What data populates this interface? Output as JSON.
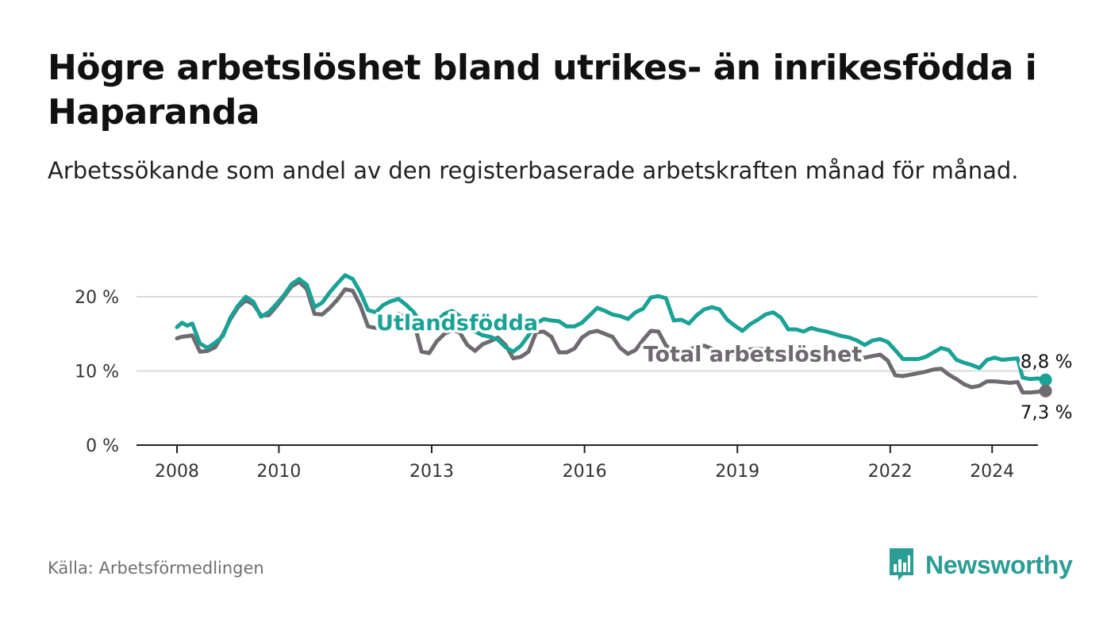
{
  "header": {
    "title": "Högre arbetslöshet bland utrikes- än inrikesfödda i Haparanda",
    "subtitle": "Arbetssökande som andel av den registerbaserade arbetskraften månad för månad."
  },
  "footer": {
    "source": "Källa: Arbetsförmedlingen",
    "brand": "Newsworthy"
  },
  "colors": {
    "foreign_born": "#1aa296",
    "total": "#6e6a6f",
    "grid": "#d9d9d9",
    "axis": "#222222",
    "text": "#111111"
  },
  "chart_data": {
    "type": "line",
    "title": "Högre arbetslöshet bland utrikes- än inrikesfödda i Haparanda",
    "xlabel": "",
    "ylabel": "",
    "ylim": [
      0,
      25
    ],
    "xlim": [
      2007.5,
      2025.2
    ],
    "y_ticks": [
      0,
      10,
      20
    ],
    "y_tick_labels": [
      "0 %",
      "10 %",
      "20 %"
    ],
    "x_ticks": [
      2008,
      2010,
      2013,
      2016,
      2019,
      2022,
      2024
    ],
    "x_tick_labels": [
      "2008",
      "2010",
      "2013",
      "2016",
      "2019",
      "2022",
      "2024"
    ],
    "grid": true,
    "end_labels": {
      "foreign_born": "8,8 %",
      "total": "7,3 %"
    },
    "series": [
      {
        "key": "foreign_born",
        "name": "Utlandsfödda",
        "color": "#1aa296",
        "points": [
          [
            2008.0,
            15.9
          ],
          [
            2008.1,
            16.5
          ],
          [
            2008.2,
            16.1
          ],
          [
            2008.3,
            16.4
          ],
          [
            2008.45,
            13.7
          ],
          [
            2008.6,
            13.1
          ],
          [
            2008.75,
            13.8
          ],
          [
            2008.9,
            14.7
          ],
          [
            2009.05,
            17.2
          ],
          [
            2009.2,
            18.8
          ],
          [
            2009.35,
            20.0
          ],
          [
            2009.5,
            19.3
          ],
          [
            2009.65,
            17.3
          ],
          [
            2009.8,
            17.9
          ],
          [
            2009.95,
            19.0
          ],
          [
            2010.1,
            20.2
          ],
          [
            2010.25,
            21.7
          ],
          [
            2010.4,
            22.4
          ],
          [
            2010.55,
            21.6
          ],
          [
            2010.7,
            18.6
          ],
          [
            2010.85,
            19.2
          ],
          [
            2011.0,
            20.6
          ],
          [
            2011.15,
            21.8
          ],
          [
            2011.3,
            22.9
          ],
          [
            2011.45,
            22.4
          ],
          [
            2011.6,
            20.6
          ],
          [
            2011.75,
            18.2
          ],
          [
            2011.9,
            17.9
          ],
          [
            2012.05,
            18.9
          ],
          [
            2012.2,
            19.4
          ],
          [
            2012.35,
            19.7
          ],
          [
            2012.5,
            18.9
          ],
          [
            2012.65,
            17.9
          ],
          [
            2012.8,
            16.3
          ],
          [
            2012.95,
            15.8
          ],
          [
            2013.1,
            16.7
          ],
          [
            2013.25,
            17.7
          ],
          [
            2013.4,
            18.1
          ],
          [
            2013.55,
            17.4
          ],
          [
            2013.7,
            16.4
          ],
          [
            2013.85,
            15.3
          ],
          [
            2014.0,
            14.8
          ],
          [
            2014.15,
            14.6
          ],
          [
            2014.3,
            14.2
          ],
          [
            2014.45,
            13.2
          ],
          [
            2014.6,
            12.6
          ],
          [
            2014.75,
            13.4
          ],
          [
            2014.9,
            14.8
          ],
          [
            2015.05,
            16.4
          ],
          [
            2015.2,
            17.0
          ],
          [
            2015.35,
            16.8
          ],
          [
            2015.5,
            16.7
          ],
          [
            2015.65,
            16.0
          ],
          [
            2015.8,
            16.0
          ],
          [
            2015.95,
            16.5
          ],
          [
            2016.1,
            17.5
          ],
          [
            2016.25,
            18.5
          ],
          [
            2016.4,
            18.1
          ],
          [
            2016.55,
            17.6
          ],
          [
            2016.7,
            17.4
          ],
          [
            2016.85,
            17.0
          ],
          [
            2017.0,
            17.9
          ],
          [
            2017.15,
            18.4
          ],
          [
            2017.3,
            19.9
          ],
          [
            2017.45,
            20.1
          ],
          [
            2017.6,
            19.8
          ],
          [
            2017.75,
            16.8
          ],
          [
            2017.9,
            16.9
          ],
          [
            2018.05,
            16.4
          ],
          [
            2018.2,
            17.5
          ],
          [
            2018.35,
            18.3
          ],
          [
            2018.5,
            18.6
          ],
          [
            2018.65,
            18.3
          ],
          [
            2018.8,
            16.9
          ],
          [
            2018.95,
            16.1
          ],
          [
            2019.1,
            15.4
          ],
          [
            2019.25,
            16.3
          ],
          [
            2019.4,
            16.9
          ],
          [
            2019.55,
            17.6
          ],
          [
            2019.7,
            17.9
          ],
          [
            2019.85,
            17.2
          ],
          [
            2020.0,
            15.6
          ],
          [
            2020.15,
            15.6
          ],
          [
            2020.3,
            15.3
          ],
          [
            2020.45,
            15.8
          ],
          [
            2020.6,
            15.5
          ],
          [
            2020.75,
            15.3
          ],
          [
            2020.9,
            15.0
          ],
          [
            2021.05,
            14.7
          ],
          [
            2021.2,
            14.5
          ],
          [
            2021.35,
            14.1
          ],
          [
            2021.5,
            13.5
          ],
          [
            2021.65,
            14.1
          ],
          [
            2021.8,
            14.3
          ],
          [
            2021.95,
            13.9
          ],
          [
            2022.1,
            12.8
          ],
          [
            2022.25,
            11.6
          ],
          [
            2022.4,
            11.6
          ],
          [
            2022.55,
            11.6
          ],
          [
            2022.7,
            11.9
          ],
          [
            2022.85,
            12.5
          ],
          [
            2023.0,
            13.1
          ],
          [
            2023.15,
            12.8
          ],
          [
            2023.3,
            11.5
          ],
          [
            2023.45,
            11.1
          ],
          [
            2023.6,
            10.8
          ],
          [
            2023.75,
            10.4
          ],
          [
            2023.9,
            11.5
          ],
          [
            2024.05,
            11.8
          ],
          [
            2024.2,
            11.5
          ],
          [
            2024.35,
            11.6
          ],
          [
            2024.5,
            11.7
          ],
          [
            2024.6,
            9.1
          ],
          [
            2024.75,
            8.9
          ],
          [
            2024.9,
            9.0
          ],
          [
            2025.05,
            8.8
          ]
        ]
      },
      {
        "key": "total",
        "name": "Total arbetslöshet",
        "color": "#6e6a6f",
        "points": [
          [
            2008.0,
            14.4
          ],
          [
            2008.1,
            14.6
          ],
          [
            2008.2,
            14.7
          ],
          [
            2008.3,
            14.8
          ],
          [
            2008.45,
            12.6
          ],
          [
            2008.6,
            12.7
          ],
          [
            2008.75,
            13.2
          ],
          [
            2008.9,
            14.9
          ],
          [
            2009.05,
            17.0
          ],
          [
            2009.2,
            18.6
          ],
          [
            2009.35,
            19.5
          ],
          [
            2009.5,
            19.0
          ],
          [
            2009.65,
            17.5
          ],
          [
            2009.8,
            17.5
          ],
          [
            2009.95,
            18.7
          ],
          [
            2010.1,
            20.0
          ],
          [
            2010.25,
            21.4
          ],
          [
            2010.4,
            22.0
          ],
          [
            2010.55,
            21.0
          ],
          [
            2010.7,
            17.7
          ],
          [
            2010.85,
            17.6
          ],
          [
            2011.0,
            18.5
          ],
          [
            2011.15,
            19.6
          ],
          [
            2011.3,
            21.0
          ],
          [
            2011.45,
            20.8
          ],
          [
            2011.6,
            18.8
          ],
          [
            2011.75,
            16.0
          ],
          [
            2011.9,
            15.8
          ],
          [
            2012.05,
            16.2
          ],
          [
            2012.2,
            16.9
          ],
          [
            2012.35,
            17.7
          ],
          [
            2012.5,
            17.2
          ],
          [
            2012.65,
            16.6
          ],
          [
            2012.8,
            12.6
          ],
          [
            2012.95,
            12.4
          ],
          [
            2013.1,
            14.0
          ],
          [
            2013.25,
            15.0
          ],
          [
            2013.4,
            15.5
          ],
          [
            2013.55,
            15.2
          ],
          [
            2013.7,
            13.5
          ],
          [
            2013.85,
            12.7
          ],
          [
            2014.0,
            13.6
          ],
          [
            2014.15,
            14.0
          ],
          [
            2014.3,
            14.5
          ],
          [
            2014.45,
            13.5
          ],
          [
            2014.6,
            11.7
          ],
          [
            2014.75,
            11.9
          ],
          [
            2014.9,
            12.6
          ],
          [
            2015.05,
            15.2
          ],
          [
            2015.2,
            15.3
          ],
          [
            2015.35,
            14.6
          ],
          [
            2015.5,
            12.5
          ],
          [
            2015.65,
            12.5
          ],
          [
            2015.8,
            13.0
          ],
          [
            2015.95,
            14.5
          ],
          [
            2016.1,
            15.2
          ],
          [
            2016.25,
            15.4
          ],
          [
            2016.4,
            15.0
          ],
          [
            2016.55,
            14.6
          ],
          [
            2016.7,
            13.1
          ],
          [
            2016.85,
            12.3
          ],
          [
            2017.0,
            12.8
          ],
          [
            2017.15,
            14.2
          ],
          [
            2017.3,
            15.4
          ],
          [
            2017.45,
            15.3
          ],
          [
            2017.6,
            13.4
          ],
          [
            2017.75,
            12.7
          ],
          [
            2017.9,
            12.4
          ],
          [
            2018.05,
            12.8
          ],
          [
            2018.2,
            13.3
          ],
          [
            2018.35,
            13.4
          ],
          [
            2018.5,
            13.0
          ],
          [
            2018.65,
            12.4
          ],
          [
            2018.8,
            12.2
          ],
          [
            2018.95,
            12.3
          ],
          [
            2019.1,
            12.4
          ],
          [
            2019.25,
            12.9
          ],
          [
            2019.4,
            13.0
          ],
          [
            2019.55,
            12.9
          ],
          [
            2019.7,
            12.5
          ],
          [
            2019.85,
            11.7
          ],
          [
            2020.0,
            11.6
          ],
          [
            2020.15,
            11.7
          ],
          [
            2020.3,
            11.9
          ],
          [
            2020.45,
            12.0
          ],
          [
            2020.6,
            11.8
          ],
          [
            2020.75,
            11.7
          ],
          [
            2020.9,
            11.8
          ],
          [
            2021.05,
            11.7
          ],
          [
            2021.2,
            11.5
          ],
          [
            2021.35,
            11.6
          ],
          [
            2021.5,
            11.8
          ],
          [
            2021.65,
            12.0
          ],
          [
            2021.8,
            12.2
          ],
          [
            2021.95,
            11.4
          ],
          [
            2022.1,
            9.4
          ],
          [
            2022.25,
            9.3
          ],
          [
            2022.4,
            9.5
          ],
          [
            2022.55,
            9.7
          ],
          [
            2022.7,
            9.9
          ],
          [
            2022.85,
            10.2
          ],
          [
            2023.0,
            10.3
          ],
          [
            2023.15,
            9.5
          ],
          [
            2023.3,
            8.9
          ],
          [
            2023.45,
            8.2
          ],
          [
            2023.6,
            7.8
          ],
          [
            2023.75,
            8.0
          ],
          [
            2023.9,
            8.6
          ],
          [
            2024.05,
            8.6
          ],
          [
            2024.2,
            8.5
          ],
          [
            2024.35,
            8.4
          ],
          [
            2024.5,
            8.5
          ],
          [
            2024.6,
            7.1
          ],
          [
            2024.75,
            7.1
          ],
          [
            2024.9,
            7.2
          ],
          [
            2025.05,
            7.3
          ]
        ]
      }
    ],
    "annotations": [
      {
        "text": "Utlandsfödda",
        "series": "foreign_born",
        "x": 2013.5,
        "y": 15.5
      },
      {
        "text": "Total arbetslöshet",
        "series": "total",
        "x": 2019.3,
        "y": 11.3
      }
    ]
  }
}
